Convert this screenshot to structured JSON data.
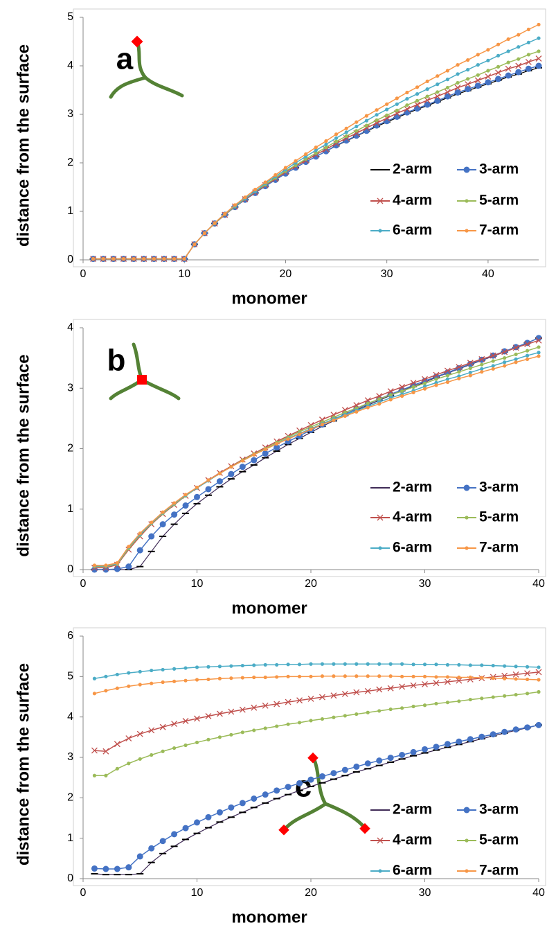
{
  "chart_data": [
    {
      "type": "line",
      "label": "a",
      "label_color": "#70ad47",
      "x_label": "monomer",
      "y_label": "distance from the surface",
      "x": [
        1,
        2,
        3,
        4,
        5,
        6,
        7,
        8,
        9,
        10,
        11,
        12,
        13,
        14,
        15,
        16,
        17,
        18,
        19,
        20,
        21,
        22,
        23,
        24,
        25,
        26,
        27,
        28,
        29,
        30,
        31,
        32,
        33,
        34,
        35,
        36,
        37,
        38,
        39,
        40,
        41,
        42,
        43,
        44,
        45
      ],
      "xlim": [
        0,
        45
      ],
      "xticks": [
        0,
        10,
        20,
        30,
        40
      ],
      "ylim": [
        0,
        5
      ],
      "yticks": [
        0,
        1,
        2,
        3,
        4,
        5
      ],
      "legend": "lower right",
      "series": [
        {
          "name": "2-arm",
          "color": "#000000",
          "marker": "dash",
          "values": [
            0.02,
            0.02,
            0.02,
            0.02,
            0.02,
            0.02,
            0.02,
            0.02,
            0.02,
            0.02,
            0.32,
            0.55,
            0.75,
            0.93,
            1.09,
            1.24,
            1.38,
            1.52,
            1.65,
            1.78,
            1.9,
            2.02,
            2.13,
            2.24,
            2.35,
            2.45,
            2.55,
            2.65,
            2.75,
            2.84,
            2.93,
            3.02,
            3.1,
            3.18,
            3.26,
            3.34,
            3.42,
            3.49,
            3.56,
            3.63,
            3.7,
            3.77,
            3.83,
            3.9,
            3.96
          ]
        },
        {
          "name": "3-arm",
          "color": "#4472c4",
          "marker": "circle",
          "values": [
            0.02,
            0.02,
            0.02,
            0.02,
            0.02,
            0.02,
            0.02,
            0.02,
            0.02,
            0.02,
            0.32,
            0.55,
            0.75,
            0.93,
            1.09,
            1.24,
            1.38,
            1.52,
            1.65,
            1.78,
            1.9,
            2.02,
            2.13,
            2.24,
            2.36,
            2.46,
            2.56,
            2.66,
            2.77,
            2.86,
            2.95,
            3.04,
            3.12,
            3.2,
            3.28,
            3.37,
            3.45,
            3.52,
            3.59,
            3.66,
            3.73,
            3.8,
            3.87,
            3.94,
            4.0
          ]
        },
        {
          "name": "4-arm",
          "color": "#c0504d",
          "marker": "x",
          "values": [
            0.02,
            0.02,
            0.02,
            0.02,
            0.02,
            0.02,
            0.02,
            0.02,
            0.02,
            0.02,
            0.32,
            0.55,
            0.75,
            0.93,
            1.1,
            1.25,
            1.39,
            1.54,
            1.67,
            1.81,
            1.93,
            2.05,
            2.17,
            2.28,
            2.4,
            2.51,
            2.61,
            2.72,
            2.82,
            2.92,
            3.02,
            3.11,
            3.2,
            3.29,
            3.37,
            3.46,
            3.55,
            3.62,
            3.7,
            3.78,
            3.86,
            3.94,
            4.0,
            4.08,
            4.15
          ]
        },
        {
          "name": "5-arm",
          "color": "#9bbb59",
          "marker": "dot",
          "values": [
            0.02,
            0.02,
            0.02,
            0.02,
            0.02,
            0.02,
            0.02,
            0.02,
            0.02,
            0.02,
            0.32,
            0.55,
            0.75,
            0.94,
            1.1,
            1.26,
            1.41,
            1.55,
            1.69,
            1.83,
            1.95,
            2.08,
            2.2,
            2.32,
            2.44,
            2.55,
            2.66,
            2.77,
            2.88,
            2.98,
            3.08,
            3.19,
            3.28,
            3.37,
            3.46,
            3.55,
            3.65,
            3.73,
            3.81,
            3.9,
            3.98,
            4.07,
            4.14,
            4.23,
            4.3
          ]
        },
        {
          "name": "6-arm",
          "color": "#4bacc6",
          "marker": "dot",
          "values": [
            0.02,
            0.02,
            0.02,
            0.02,
            0.02,
            0.02,
            0.02,
            0.02,
            0.02,
            0.02,
            0.32,
            0.55,
            0.76,
            0.95,
            1.11,
            1.27,
            1.41,
            1.58,
            1.72,
            1.86,
            2.0,
            2.13,
            2.26,
            2.38,
            2.51,
            2.63,
            2.75,
            2.87,
            2.99,
            3.1,
            3.21,
            3.32,
            3.42,
            3.52,
            3.62,
            3.72,
            3.83,
            3.92,
            4.02,
            4.11,
            4.21,
            4.3,
            4.39,
            4.48,
            4.57
          ]
        },
        {
          "name": "7-arm",
          "color": "#f79646",
          "marker": "dot",
          "values": [
            0.02,
            0.02,
            0.02,
            0.02,
            0.02,
            0.02,
            0.02,
            0.02,
            0.02,
            0.02,
            0.32,
            0.55,
            0.76,
            0.95,
            1.13,
            1.29,
            1.45,
            1.6,
            1.75,
            1.9,
            2.04,
            2.18,
            2.32,
            2.45,
            2.59,
            2.71,
            2.84,
            2.97,
            3.09,
            3.21,
            3.33,
            3.45,
            3.56,
            3.68,
            3.79,
            3.9,
            4.02,
            4.12,
            4.23,
            4.33,
            4.44,
            4.55,
            4.64,
            4.75,
            4.85
          ]
        }
      ]
    },
    {
      "type": "line",
      "label": "b",
      "label_color": "#c00000",
      "x_label": "monomer",
      "y_label": "distance from the surface",
      "x": [
        1,
        2,
        3,
        4,
        5,
        6,
        7,
        8,
        9,
        10,
        11,
        12,
        13,
        14,
        15,
        16,
        17,
        18,
        19,
        20,
        21,
        22,
        23,
        24,
        25,
        26,
        27,
        28,
        29,
        30,
        31,
        32,
        33,
        34,
        35,
        36,
        37,
        38,
        39,
        40
      ],
      "xlim": [
        0,
        40
      ],
      "xticks": [
        0,
        10,
        20,
        30,
        40
      ],
      "ylim": [
        0,
        4
      ],
      "yticks": [
        0,
        1,
        2,
        3,
        4
      ],
      "legend": "lower right",
      "series": [
        {
          "name": "2-arm",
          "color": "#3f2a56",
          "marker": "dash",
          "values": [
            0,
            0,
            0,
            0,
            0.05,
            0.3,
            0.55,
            0.75,
            0.93,
            1.09,
            1.23,
            1.37,
            1.5,
            1.62,
            1.73,
            1.85,
            1.96,
            2.07,
            2.17,
            2.27,
            2.37,
            2.46,
            2.55,
            2.64,
            2.72,
            2.8,
            2.88,
            2.96,
            3.03,
            3.1,
            3.18,
            3.25,
            3.32,
            3.39,
            3.46,
            3.53,
            3.6,
            3.67,
            3.75,
            3.83
          ]
        },
        {
          "name": "3-arm",
          "color": "#4472c4",
          "marker": "circle",
          "values": [
            0,
            0,
            0.01,
            0.05,
            0.32,
            0.55,
            0.75,
            0.91,
            1.06,
            1.2,
            1.33,
            1.46,
            1.58,
            1.7,
            1.81,
            1.92,
            2.02,
            2.12,
            2.21,
            2.31,
            2.4,
            2.49,
            2.57,
            2.66,
            2.74,
            2.82,
            2.9,
            2.97,
            3.05,
            3.12,
            3.19,
            3.26,
            3.33,
            3.4,
            3.47,
            3.54,
            3.61,
            3.68,
            3.75,
            3.83
          ]
        },
        {
          "name": "4-arm",
          "color": "#c0504d",
          "marker": "x",
          "values": [
            0.03,
            0.03,
            0.08,
            0.33,
            0.55,
            0.75,
            0.92,
            1.07,
            1.22,
            1.35,
            1.48,
            1.6,
            1.71,
            1.82,
            1.92,
            2.02,
            2.12,
            2.21,
            2.3,
            2.39,
            2.48,
            2.56,
            2.64,
            2.72,
            2.8,
            2.87,
            2.95,
            3.02,
            3.09,
            3.15,
            3.22,
            3.29,
            3.35,
            3.42,
            3.48,
            3.54,
            3.6,
            3.67,
            3.73,
            3.79
          ]
        },
        {
          "name": "5-arm",
          "color": "#9bbb59",
          "marker": "dot",
          "values": [
            0.05,
            0.05,
            0.09,
            0.35,
            0.57,
            0.76,
            0.93,
            1.08,
            1.22,
            1.35,
            1.47,
            1.59,
            1.7,
            1.81,
            1.91,
            2.0,
            2.1,
            2.19,
            2.28,
            2.36,
            2.44,
            2.52,
            2.6,
            2.67,
            2.75,
            2.82,
            2.89,
            2.95,
            3.02,
            3.08,
            3.15,
            3.21,
            3.27,
            3.33,
            3.39,
            3.45,
            3.5,
            3.56,
            3.62,
            3.68
          ]
        },
        {
          "name": "6-arm",
          "color": "#4bacc6",
          "marker": "dot",
          "values": [
            0.06,
            0.06,
            0.1,
            0.37,
            0.58,
            0.77,
            0.94,
            1.09,
            1.23,
            1.35,
            1.47,
            1.59,
            1.7,
            1.8,
            1.9,
            1.99,
            2.08,
            2.17,
            2.25,
            2.33,
            2.41,
            2.49,
            2.56,
            2.63,
            2.7,
            2.77,
            2.84,
            2.9,
            2.96,
            3.03,
            3.09,
            3.15,
            3.2,
            3.26,
            3.32,
            3.37,
            3.43,
            3.48,
            3.54,
            3.59
          ]
        },
        {
          "name": "7-arm",
          "color": "#f79646",
          "marker": "dot",
          "values": [
            0.07,
            0.07,
            0.11,
            0.38,
            0.6,
            0.78,
            0.95,
            1.1,
            1.24,
            1.36,
            1.48,
            1.59,
            1.7,
            1.8,
            1.9,
            1.99,
            2.08,
            2.16,
            2.24,
            2.32,
            2.4,
            2.47,
            2.54,
            2.61,
            2.68,
            2.74,
            2.81,
            2.87,
            2.93,
            2.99,
            3.05,
            3.1,
            3.16,
            3.21,
            3.27,
            3.32,
            3.37,
            3.43,
            3.48,
            3.53
          ]
        }
      ]
    },
    {
      "type": "line",
      "label": "c",
      "label_color": "#4472c4",
      "x_label": "monomer",
      "y_label": "distance from the surface",
      "x": [
        1,
        2,
        3,
        4,
        5,
        6,
        7,
        8,
        9,
        10,
        11,
        12,
        13,
        14,
        15,
        16,
        17,
        18,
        19,
        20,
        21,
        22,
        23,
        24,
        25,
        26,
        27,
        28,
        29,
        30,
        31,
        32,
        33,
        34,
        35,
        36,
        37,
        38,
        39,
        40
      ],
      "xlim": [
        0,
        40
      ],
      "xticks": [
        0,
        10,
        20,
        30,
        40
      ],
      "ylim": [
        0,
        6
      ],
      "yticks": [
        0,
        1,
        2,
        3,
        4,
        5,
        6
      ],
      "legend": "lower right",
      "series": [
        {
          "name": "2-arm",
          "color": "#3f2a56",
          "marker": "dash",
          "values": [
            0.12,
            0.1,
            0.1,
            0.1,
            0.12,
            0.4,
            0.62,
            0.8,
            0.97,
            1.12,
            1.26,
            1.4,
            1.52,
            1.64,
            1.76,
            1.87,
            1.98,
            2.08,
            2.18,
            2.28,
            2.37,
            2.46,
            2.55,
            2.64,
            2.72,
            2.8,
            2.88,
            2.96,
            3.04,
            3.11,
            3.18,
            3.25,
            3.32,
            3.39,
            3.46,
            3.53,
            3.6,
            3.67,
            3.73,
            3.8
          ]
        },
        {
          "name": "3-arm",
          "color": "#4472c4",
          "marker": "circle",
          "values": [
            0.25,
            0.24,
            0.24,
            0.28,
            0.55,
            0.75,
            0.93,
            1.1,
            1.25,
            1.39,
            1.52,
            1.64,
            1.76,
            1.87,
            1.98,
            2.08,
            2.18,
            2.27,
            2.36,
            2.45,
            2.53,
            2.61,
            2.69,
            2.77,
            2.85,
            2.92,
            2.99,
            3.06,
            3.13,
            3.2,
            3.26,
            3.33,
            3.39,
            3.45,
            3.51,
            3.57,
            3.63,
            3.69,
            3.74,
            3.8
          ]
        },
        {
          "name": "4-arm",
          "color": "#c0504d",
          "marker": "x",
          "values": [
            3.17,
            3.15,
            3.33,
            3.47,
            3.58,
            3.67,
            3.75,
            3.83,
            3.9,
            3.96,
            4.02,
            4.08,
            4.13,
            4.18,
            4.23,
            4.28,
            4.32,
            4.37,
            4.41,
            4.45,
            4.49,
            4.53,
            4.57,
            4.61,
            4.64,
            4.68,
            4.71,
            4.75,
            4.78,
            4.81,
            4.84,
            4.87,
            4.9,
            4.93,
            4.96,
            4.99,
            5.02,
            5.05,
            5.08,
            5.11
          ]
        },
        {
          "name": "5-arm",
          "color": "#9bbb59",
          "marker": "dot",
          "values": [
            2.55,
            2.55,
            2.72,
            2.85,
            2.96,
            3.06,
            3.15,
            3.23,
            3.3,
            3.37,
            3.44,
            3.5,
            3.56,
            3.62,
            3.67,
            3.72,
            3.77,
            3.82,
            3.86,
            3.91,
            3.95,
            3.99,
            4.03,
            4.07,
            4.11,
            4.15,
            4.19,
            4.22,
            4.26,
            4.29,
            4.33,
            4.36,
            4.39,
            4.43,
            4.46,
            4.49,
            4.52,
            4.55,
            4.58,
            4.62
          ]
        },
        {
          "name": "6-arm",
          "color": "#4bacc6",
          "marker": "dot",
          "values": [
            4.95,
            5.0,
            5.05,
            5.09,
            5.12,
            5.15,
            5.17,
            5.19,
            5.21,
            5.23,
            5.24,
            5.25,
            5.26,
            5.27,
            5.28,
            5.29,
            5.29,
            5.3,
            5.3,
            5.31,
            5.31,
            5.31,
            5.31,
            5.31,
            5.31,
            5.31,
            5.31,
            5.31,
            5.3,
            5.3,
            5.3,
            5.29,
            5.29,
            5.28,
            5.28,
            5.27,
            5.26,
            5.25,
            5.24,
            5.23
          ]
        },
        {
          "name": "7-arm",
          "color": "#f79646",
          "marker": "dot",
          "values": [
            4.58,
            4.65,
            4.71,
            4.76,
            4.8,
            4.83,
            4.86,
            4.88,
            4.9,
            4.92,
            4.93,
            4.95,
            4.96,
            4.97,
            4.98,
            4.98,
            4.99,
            5.0,
            5.0,
            5.0,
            5.01,
            5.01,
            5.01,
            5.01,
            5.01,
            5.01,
            5.01,
            5.0,
            5.0,
            5.0,
            4.99,
            4.99,
            4.98,
            4.98,
            4.97,
            4.96,
            4.95,
            4.94,
            4.93,
            4.92
          ]
        }
      ]
    }
  ]
}
